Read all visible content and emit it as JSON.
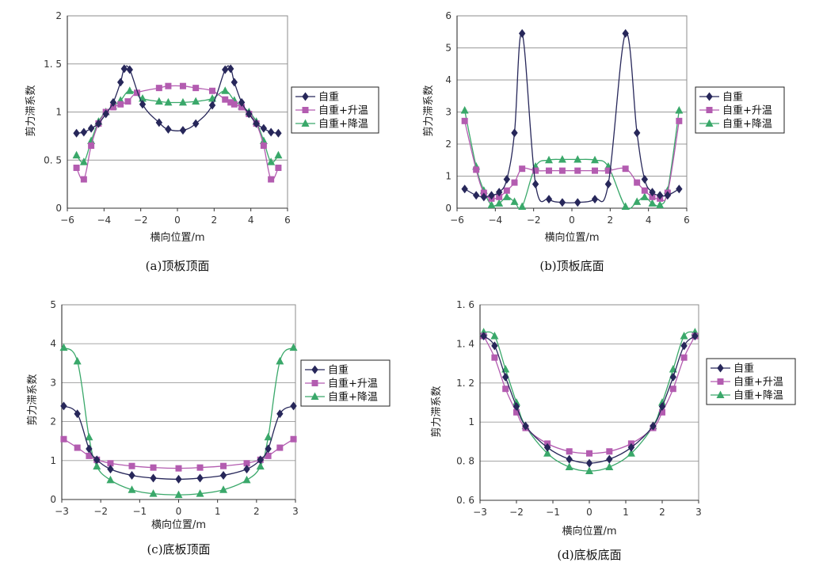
{
  "legend_labels": [
    "自重",
    "自重+升温",
    "自重+降温"
  ],
  "series_colors": [
    "#27275a",
    "#b35cb0",
    "#3aa86a"
  ],
  "marker_shapes": [
    "diamond",
    "square",
    "triangle"
  ],
  "chart_data": [
    {
      "type": "line",
      "caption": "(a)顶板顶面",
      "xlabel": "横向位置/m",
      "ylabel": "剪力滞系数",
      "xlim": [
        -6,
        6
      ],
      "ylim": [
        0,
        2
      ],
      "xticks": [
        -6,
        -4,
        -2,
        0,
        2,
        4,
        6
      ],
      "xtick_labels": [
        "−6",
        "−4",
        "−2",
        "0",
        "2",
        "4",
        "6"
      ],
      "yticks": [
        0,
        0.5,
        1,
        1.5,
        2
      ],
      "ytick_labels": [
        "0",
        "0. 5",
        "1",
        "1. 5",
        "2"
      ],
      "grid": "horizontal",
      "legend_position": "right",
      "series": [
        {
          "name": "自重",
          "x": [
            -5.5,
            -5.1,
            -4.7,
            -4.3,
            -3.9,
            -3.5,
            -3.1,
            -2.9,
            -2.6,
            -1.9,
            -1.0,
            -0.5,
            0.3,
            1.0,
            1.9,
            2.6,
            2.9,
            3.1,
            3.5,
            3.9,
            4.3,
            4.7,
            5.1,
            5.5
          ],
          "y": [
            0.78,
            0.79,
            0.83,
            0.88,
            0.98,
            1.1,
            1.31,
            1.45,
            1.44,
            1.08,
            0.89,
            0.82,
            0.81,
            0.88,
            1.07,
            1.44,
            1.45,
            1.31,
            1.1,
            0.98,
            0.88,
            0.83,
            0.79,
            0.78
          ]
        },
        {
          "name": "自重+升温",
          "x": [
            -5.5,
            -5.1,
            -4.7,
            -4.3,
            -3.9,
            -3.5,
            -3.1,
            -2.7,
            -2.2,
            -1.0,
            -0.5,
            0.3,
            1.0,
            1.9,
            2.6,
            2.9,
            3.1,
            3.5,
            3.9,
            4.3,
            4.7,
            5.1,
            5.5
          ],
          "y": [
            0.42,
            0.3,
            0.65,
            0.88,
            1.0,
            1.05,
            1.08,
            1.11,
            1.2,
            1.25,
            1.27,
            1.27,
            1.25,
            1.22,
            1.13,
            1.1,
            1.08,
            1.05,
            0.98,
            0.88,
            0.65,
            0.3,
            0.42
          ]
        },
        {
          "name": "自重+降温",
          "x": [
            -5.5,
            -5.1,
            -4.7,
            -4.3,
            -3.9,
            -3.5,
            -3.1,
            -2.6,
            -1.9,
            -1.0,
            -0.5,
            0.3,
            1.0,
            1.9,
            2.6,
            3.1,
            3.5,
            3.9,
            4.3,
            4.7,
            5.1,
            5.5
          ],
          "y": [
            0.55,
            0.48,
            0.7,
            0.9,
            1.0,
            1.06,
            1.12,
            1.22,
            1.14,
            1.11,
            1.1,
            1.1,
            1.11,
            1.14,
            1.22,
            1.12,
            1.06,
            1.0,
            0.9,
            0.7,
            0.48,
            0.55
          ]
        }
      ]
    },
    {
      "type": "line",
      "caption": "(b)顶板底面",
      "xlabel": "横向位置/m",
      "ylabel": "剪力滞系数",
      "xlim": [
        -6,
        6
      ],
      "ylim": [
        0,
        6
      ],
      "xticks": [
        -6,
        -4,
        -2,
        0,
        2,
        4,
        6
      ],
      "xtick_labels": [
        "−6",
        "−4",
        "−2",
        "0",
        "2",
        "4",
        "6"
      ],
      "yticks": [
        0,
        1,
        2,
        3,
        4,
        5,
        6
      ],
      "ytick_labels": [
        "0",
        "1",
        "2",
        "3",
        "4",
        "5",
        "6"
      ],
      "grid": "horizontal",
      "legend_position": "right",
      "series": [
        {
          "name": "自重",
          "x": [
            -5.6,
            -5.0,
            -4.6,
            -4.2,
            -3.8,
            -3.4,
            -3.0,
            -2.6,
            -1.9,
            -1.2,
            -0.5,
            0.3,
            1.2,
            1.9,
            2.8,
            3.4,
            3.8,
            4.2,
            4.6,
            5.0,
            5.6
          ],
          "y": [
            0.6,
            0.4,
            0.35,
            0.4,
            0.5,
            0.9,
            2.35,
            5.45,
            0.75,
            0.28,
            0.18,
            0.18,
            0.28,
            0.75,
            5.45,
            2.35,
            0.9,
            0.5,
            0.4,
            0.4,
            0.6
          ]
        },
        {
          "name": "自重+升温",
          "x": [
            -5.6,
            -5.0,
            -4.6,
            -4.2,
            -3.8,
            -3.4,
            -3.0,
            -2.6,
            -1.9,
            -1.2,
            -0.5,
            0.3,
            1.2,
            1.9,
            2.8,
            3.4,
            3.8,
            4.2,
            4.6,
            5.0,
            5.6
          ],
          "y": [
            2.72,
            1.2,
            0.48,
            0.3,
            0.35,
            0.55,
            0.8,
            1.23,
            1.17,
            1.17,
            1.17,
            1.17,
            1.17,
            1.17,
            1.23,
            0.8,
            0.55,
            0.35,
            0.3,
            0.48,
            2.72
          ]
        },
        {
          "name": "自重+降温",
          "x": [
            -5.6,
            -5.0,
            -4.6,
            -4.2,
            -3.8,
            -3.4,
            -3.0,
            -2.6,
            -1.9,
            -1.2,
            -0.5,
            0.3,
            1.2,
            1.9,
            2.8,
            3.4,
            3.8,
            4.2,
            4.6,
            5.0,
            5.6
          ],
          "y": [
            3.05,
            1.3,
            0.55,
            0.1,
            0.15,
            0.35,
            0.2,
            0.05,
            1.3,
            1.5,
            1.52,
            1.52,
            1.5,
            1.3,
            0.05,
            0.2,
            0.35,
            0.15,
            0.1,
            0.55,
            3.05
          ]
        }
      ]
    },
    {
      "type": "line",
      "caption": "(c)底板顶面",
      "xlabel": "横向位置/m",
      "ylabel": "剪力滞系数",
      "xlim": [
        -3,
        3
      ],
      "ylim": [
        0,
        5
      ],
      "xticks": [
        -3,
        -2,
        -1,
        0,
        1,
        2,
        3
      ],
      "xtick_labels": [
        "−3",
        "−2",
        "−1",
        "0",
        "1",
        "2",
        "3"
      ],
      "yticks": [
        0,
        1,
        2,
        3,
        4,
        5
      ],
      "ytick_labels": [
        "0",
        "1",
        "2",
        "3",
        "4",
        "5"
      ],
      "grid": "horizontal",
      "legend_position": "right",
      "series": [
        {
          "name": "自重",
          "x": [
            -2.95,
            -2.6,
            -2.3,
            -2.1,
            -1.75,
            -1.2,
            -0.65,
            0.0,
            0.55,
            1.15,
            1.75,
            2.1,
            2.3,
            2.6,
            2.95
          ],
          "y": [
            2.4,
            2.2,
            1.3,
            1.02,
            0.78,
            0.62,
            0.55,
            0.52,
            0.55,
            0.62,
            0.78,
            1.02,
            1.3,
            2.2,
            2.4
          ]
        },
        {
          "name": "自重+升温",
          "x": [
            -2.95,
            -2.6,
            -2.3,
            -2.1,
            -1.75,
            -1.2,
            -0.65,
            0.0,
            0.55,
            1.15,
            1.75,
            2.1,
            2.3,
            2.6,
            2.95
          ],
          "y": [
            1.55,
            1.33,
            1.12,
            1.02,
            0.93,
            0.86,
            0.82,
            0.8,
            0.82,
            0.86,
            0.93,
            1.02,
            1.12,
            1.33,
            1.55
          ]
        },
        {
          "name": "自重+降温",
          "x": [
            -2.95,
            -2.6,
            -2.3,
            -2.1,
            -1.75,
            -1.2,
            -0.65,
            0.0,
            0.55,
            1.15,
            1.75,
            2.1,
            2.3,
            2.6,
            2.95
          ],
          "y": [
            3.9,
            3.55,
            1.6,
            0.85,
            0.5,
            0.25,
            0.15,
            0.12,
            0.15,
            0.25,
            0.5,
            0.85,
            1.6,
            3.55,
            3.9
          ]
        }
      ]
    },
    {
      "type": "line",
      "caption": "(d)底板底面",
      "xlabel": "横向位置/m",
      "ylabel": "剪力滞系数",
      "xlim": [
        -3,
        3
      ],
      "ylim": [
        0.6,
        1.6
      ],
      "xticks": [
        -3,
        -2,
        -1,
        0,
        1,
        2,
        3
      ],
      "xtick_labels": [
        "−3",
        "−2",
        "−1",
        "0",
        "1",
        "2",
        "3"
      ],
      "yticks": [
        0.6,
        0.8,
        1,
        1.2,
        1.4,
        1.6
      ],
      "ytick_labels": [
        "0. 6",
        "0. 8",
        "1",
        "1. 2",
        "1. 4",
        "1. 6"
      ],
      "grid": "horizontal",
      "legend_position": "right",
      "series": [
        {
          "name": "自重",
          "x": [
            -2.9,
            -2.6,
            -2.3,
            -2.0,
            -1.75,
            -1.15,
            -0.55,
            0.0,
            0.55,
            1.15,
            1.75,
            2.0,
            2.3,
            2.6,
            2.9
          ],
          "y": [
            1.44,
            1.39,
            1.23,
            1.08,
            0.98,
            0.87,
            0.81,
            0.79,
            0.81,
            0.87,
            0.98,
            1.08,
            1.23,
            1.39,
            1.44
          ]
        },
        {
          "name": "自重+升温",
          "x": [
            -2.9,
            -2.6,
            -2.3,
            -2.0,
            -1.75,
            -1.15,
            -0.55,
            0.0,
            0.55,
            1.15,
            1.75,
            2.0,
            2.3,
            2.6,
            2.9
          ],
          "y": [
            1.44,
            1.33,
            1.17,
            1.05,
            0.97,
            0.89,
            0.85,
            0.84,
            0.85,
            0.89,
            0.97,
            1.05,
            1.17,
            1.33,
            1.44
          ]
        },
        {
          "name": "自重+降温",
          "x": [
            -2.9,
            -2.6,
            -2.3,
            -2.0,
            -1.75,
            -1.15,
            -0.55,
            0.0,
            0.55,
            1.15,
            1.75,
            2.0,
            2.3,
            2.6,
            2.9
          ],
          "y": [
            1.46,
            1.44,
            1.27,
            1.1,
            0.98,
            0.84,
            0.77,
            0.75,
            0.77,
            0.84,
            0.98,
            1.1,
            1.27,
            1.44,
            1.46
          ]
        }
      ]
    }
  ]
}
